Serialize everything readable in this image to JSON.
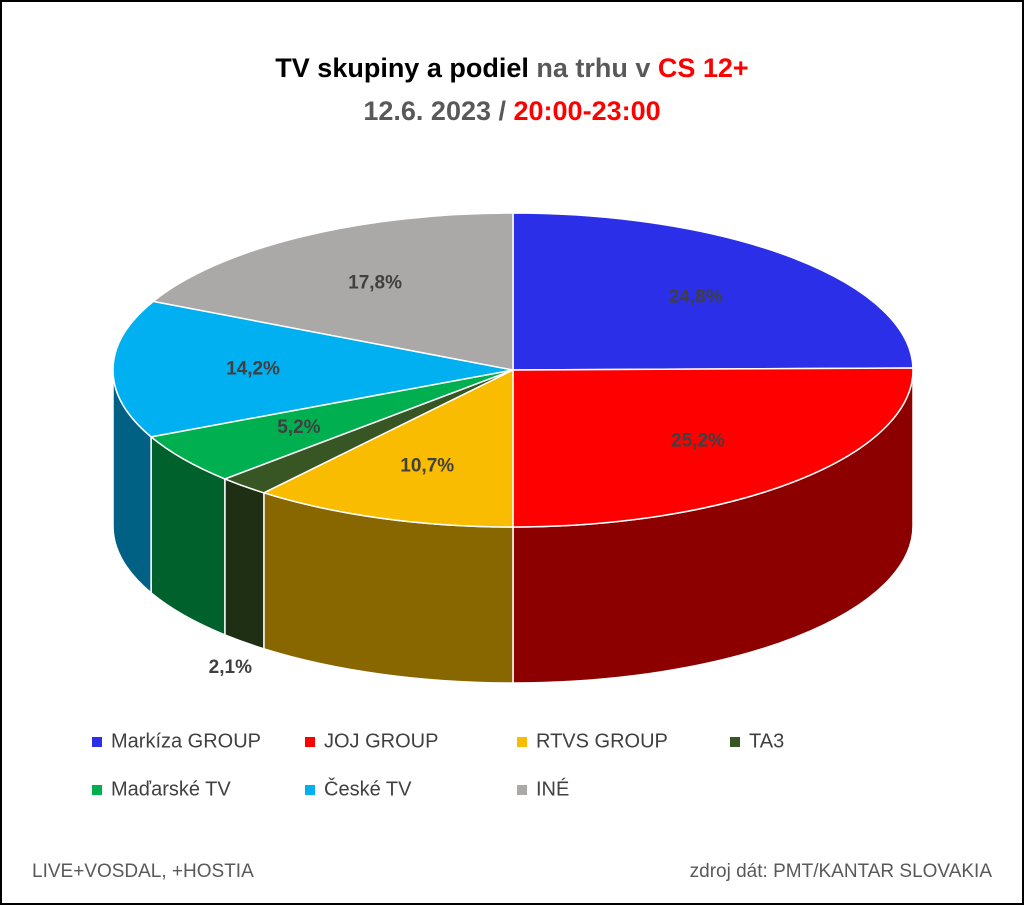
{
  "chart_data": {
    "type": "pie3d",
    "title": [
      {
        "text": "TV skupiny a podiel",
        "color": "#000000"
      },
      {
        "text": "na trhu v",
        "color": "#595959"
      },
      {
        "text": "CS 12+",
        "color": "#ff0000"
      }
    ],
    "subtitle": [
      {
        "text": "12.6. 2023 /",
        "color": "#595959"
      },
      {
        "text": "20:00-23:00",
        "color": "#ff0000"
      }
    ],
    "categories": [
      "Markíza GROUP",
      "JOJ GROUP",
      "RTVS GROUP",
      "TA3",
      "Maďarské  TV",
      "České  TV",
      "INÉ"
    ],
    "values": [
      24.8,
      25.2,
      10.7,
      2.1,
      5.2,
      14.2,
      17.8
    ],
    "value_labels": [
      "24,8%",
      "25,2%",
      "10,7%",
      "2,1%",
      "5,2%",
      "14,2%",
      "17,8%"
    ],
    "colors": [
      "#2b2fe8",
      "#ff0000",
      "#f9bc00",
      "#375623",
      "#00b050",
      "#00b0f0",
      "#aba8a8"
    ],
    "notes": [
      "LIVE+VOSDAL, +HOSTIA",
      "zdroj dát: PMT/KANTAR SLOVAKIA"
    ]
  }
}
